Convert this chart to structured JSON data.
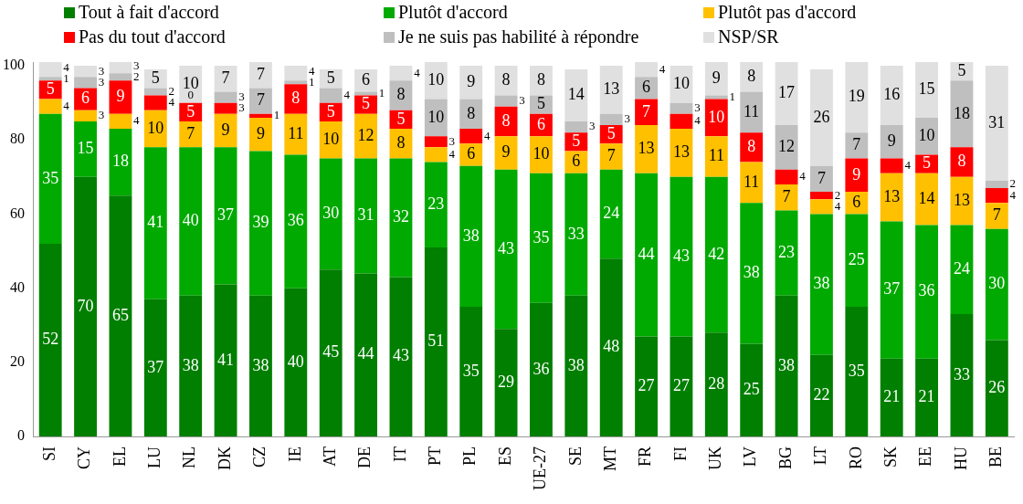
{
  "chart_data": {
    "type": "bar",
    "stacked": true,
    "data_labels": true,
    "legend": "top",
    "grid": false,
    "categories": [
      "SI",
      "CY",
      "EL",
      "LU",
      "NL",
      "DK",
      "CZ",
      "IE",
      "AT",
      "DE",
      "IT",
      "PT",
      "PL",
      "ES",
      "UE-27",
      "SE",
      "MT",
      "FR",
      "FI",
      "UK",
      "LV",
      "BG",
      "LT",
      "RO",
      "SK",
      "EE",
      "HU",
      "BE"
    ],
    "ylim": [
      0,
      101
    ],
    "yticks": [
      0,
      20,
      40,
      60,
      80,
      100
    ],
    "series": [
      {
        "name": "Tout à fait d'accord",
        "color": "#007f00",
        "values": [
          52,
          70,
          65,
          37,
          38,
          41,
          38,
          40,
          45,
          44,
          43,
          51,
          35,
          29,
          36,
          38,
          48,
          27,
          27,
          28,
          25,
          38,
          22,
          35,
          21,
          21,
          33,
          26
        ]
      },
      {
        "name": "Plutôt d'accord",
        "color": "#00aa00",
        "values": [
          35,
          15,
          18,
          41,
          40,
          37,
          39,
          36,
          30,
          31,
          32,
          23,
          38,
          43,
          35,
          33,
          24,
          44,
          43,
          42,
          38,
          23,
          38,
          25,
          37,
          36,
          24,
          30
        ]
      },
      {
        "name": "Plutôt pas d'accord",
        "color": "#ffc000",
        "values": [
          4,
          3,
          4,
          10,
          7,
          9,
          9,
          11,
          10,
          12,
          8,
          4,
          6,
          9,
          10,
          6,
          7,
          13,
          13,
          11,
          11,
          7,
          4,
          6,
          13,
          14,
          13,
          7
        ]
      },
      {
        "name": "Pas du tout d'accord",
        "color": "#ff0000",
        "values": [
          5,
          6,
          9,
          4,
          5,
          3,
          1,
          8,
          5,
          5,
          5,
          3,
          4,
          8,
          6,
          5,
          5,
          7,
          4,
          10,
          8,
          4,
          2,
          9,
          4,
          5,
          8,
          4
        ]
      },
      {
        "name": "Je ne suis pas habilité à répondre",
        "color": "#bfbfbf",
        "values": [
          1,
          3,
          2,
          2,
          0,
          3,
          7,
          1,
          4,
          1,
          8,
          10,
          8,
          3,
          5,
          3,
          3,
          6,
          3,
          1,
          11,
          12,
          7,
          7,
          9,
          10,
          18,
          2
        ]
      },
      {
        "name": "NSP/SR",
        "color": "#e0e0e0",
        "values": [
          4,
          3,
          3,
          5,
          10,
          7,
          7,
          4,
          5,
          6,
          4,
          10,
          9,
          8,
          8,
          14,
          13,
          4,
          10,
          9,
          8,
          17,
          26,
          19,
          16,
          15,
          5,
          31
        ]
      }
    ]
  }
}
